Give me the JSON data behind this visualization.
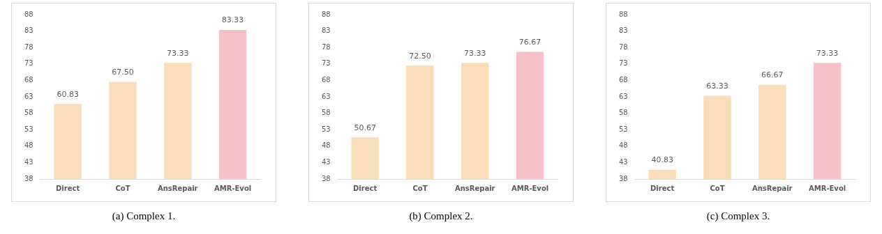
{
  "chart_data": [
    {
      "type": "bar",
      "categories": [
        "Direct",
        "CoT",
        "AnsRepair",
        "AMR-Evol"
      ],
      "values": [
        60.83,
        67.5,
        73.33,
        83.33
      ],
      "colors": [
        "#f9dcb9",
        "#f9dcb9",
        "#f9dcb9",
        "#f5c1c6"
      ],
      "value_labels": [
        "60.83",
        "67.50",
        "73.33",
        "83.33"
      ],
      "ylim": [
        38,
        88
      ],
      "yticks": [
        38,
        43,
        48,
        53,
        58,
        63,
        68,
        73,
        78,
        83,
        88
      ],
      "grid": false,
      "legend": false,
      "annotations": [
        "(a) Complex 1."
      ]
    },
    {
      "type": "bar",
      "categories": [
        "Direct",
        "CoT",
        "AnsRepair",
        "AMR-Evol"
      ],
      "values": [
        50.67,
        72.5,
        73.33,
        76.67
      ],
      "colors": [
        "#f9dcb9",
        "#f9dcb9",
        "#f9dcb9",
        "#f5c1c6"
      ],
      "value_labels": [
        "50.67",
        "72.50",
        "73.33",
        "76.67"
      ],
      "ylim": [
        38,
        88
      ],
      "yticks": [
        38,
        43,
        48,
        53,
        58,
        63,
        68,
        73,
        78,
        83,
        88
      ],
      "grid": false,
      "legend": false,
      "annotations": [
        "(b) Complex 2."
      ]
    },
    {
      "type": "bar",
      "categories": [
        "Direct",
        "CoT",
        "AnsRepair",
        "AMR-Evol"
      ],
      "values": [
        40.83,
        63.33,
        66.67,
        73.33
      ],
      "colors": [
        "#f9dcb9",
        "#f9dcb9",
        "#f9dcb9",
        "#f5c1c6"
      ],
      "value_labels": [
        "40.83",
        "63.33",
        "66.67",
        "73.33"
      ],
      "ylim": [
        38,
        88
      ],
      "yticks": [
        38,
        43,
        48,
        53,
        58,
        63,
        68,
        73,
        78,
        83,
        88
      ],
      "grid": false,
      "legend": false,
      "annotations": [
        "(c) Complex 3."
      ]
    }
  ]
}
